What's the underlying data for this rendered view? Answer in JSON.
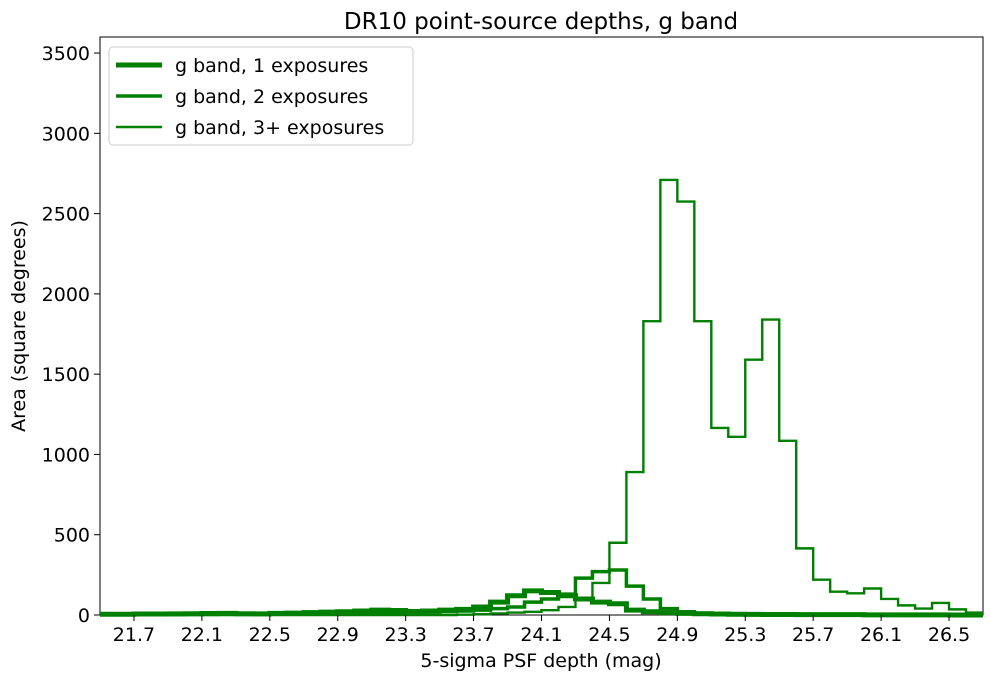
{
  "chart_data": {
    "type": "line",
    "style": "step histogram",
    "title": "DR10 point-source depths, g band",
    "xlabel": "5-sigma PSF depth (mag)",
    "ylabel": "Area (square degrees)",
    "xlim": [
      21.5,
      26.7
    ],
    "ylim": [
      0,
      3600
    ],
    "bin_width": 0.1,
    "x_ticks": [
      "21.7",
      "22.1",
      "22.5",
      "22.9",
      "23.3",
      "23.7",
      "24.1",
      "24.5",
      "24.9",
      "25.3",
      "25.7",
      "26.1",
      "26.5"
    ],
    "y_ticks": [
      "0",
      "500",
      "1000",
      "1500",
      "2000",
      "2500",
      "3000",
      "3500"
    ],
    "grid": false,
    "legend_position": "top-left",
    "color": "#008000",
    "series": [
      {
        "name": "g band, 1 exposures",
        "line_weight": "thick",
        "bin_starts": [
          21.5,
          21.6,
          21.7,
          21.8,
          21.9,
          22.0,
          22.1,
          22.2,
          22.3,
          22.4,
          22.5,
          22.6,
          22.7,
          22.8,
          22.9,
          23.0,
          23.1,
          23.2,
          23.3,
          23.4,
          23.5,
          23.6,
          23.7,
          23.8,
          23.9,
          24.0,
          24.1,
          24.2,
          24.3,
          24.4,
          24.5,
          24.6,
          24.7,
          24.8,
          24.9,
          25.0,
          25.1,
          25.2,
          25.3,
          25.4,
          25.5,
          25.6,
          25.7,
          25.8,
          25.9,
          26.0,
          26.1,
          26.2,
          26.3,
          26.4,
          26.5,
          26.6
        ],
        "values": [
          5,
          5,
          6,
          6,
          7,
          8,
          9,
          10,
          8,
          7,
          10,
          12,
          15,
          18,
          20,
          25,
          30,
          28,
          22,
          25,
          30,
          35,
          50,
          80,
          120,
          150,
          140,
          120,
          100,
          80,
          70,
          30,
          20,
          15,
          10,
          8,
          6,
          5,
          4,
          3,
          3,
          2,
          2,
          2,
          2,
          1,
          1,
          1,
          1,
          1,
          0,
          0
        ]
      },
      {
        "name": "g band, 2 exposures",
        "line_weight": "medium",
        "bin_starts": [
          21.5,
          21.6,
          21.7,
          21.8,
          21.9,
          22.0,
          22.1,
          22.2,
          22.3,
          22.4,
          22.5,
          22.6,
          22.7,
          22.8,
          22.9,
          23.0,
          23.1,
          23.2,
          23.3,
          23.4,
          23.5,
          23.6,
          23.7,
          23.8,
          23.9,
          24.0,
          24.1,
          24.2,
          24.3,
          24.4,
          24.5,
          24.6,
          24.7,
          24.8,
          24.9,
          25.0,
          25.1,
          25.2,
          25.3,
          25.4,
          25.5,
          25.6,
          25.7,
          25.8,
          25.9,
          26.0,
          26.1,
          26.2,
          26.3,
          26.4,
          26.5,
          26.6
        ],
        "values": [
          2,
          2,
          3,
          3,
          3,
          4,
          4,
          5,
          5,
          5,
          6,
          6,
          7,
          8,
          9,
          10,
          12,
          14,
          16,
          18,
          22,
          25,
          30,
          40,
          50,
          80,
          100,
          130,
          230,
          270,
          280,
          180,
          100,
          40,
          20,
          12,
          8,
          6,
          5,
          4,
          3,
          3,
          2,
          2,
          2,
          1,
          1,
          1,
          1,
          1,
          0,
          0
        ]
      },
      {
        "name": "g band, 3+ exposures",
        "line_weight": "thin",
        "bin_starts": [
          21.5,
          21.6,
          21.7,
          21.8,
          21.9,
          22.0,
          22.1,
          22.2,
          22.3,
          22.4,
          22.5,
          22.6,
          22.7,
          22.8,
          22.9,
          23.0,
          23.1,
          23.2,
          23.3,
          23.4,
          23.5,
          23.6,
          23.7,
          23.8,
          23.9,
          24.0,
          24.1,
          24.2,
          24.3,
          24.4,
          24.5,
          24.6,
          24.7,
          24.8,
          24.9,
          25.0,
          25.1,
          25.2,
          25.3,
          25.4,
          25.5,
          25.6,
          25.7,
          25.8,
          25.9,
          26.0,
          26.1,
          26.2,
          26.3,
          26.4,
          26.5,
          26.6
        ],
        "values": [
          0,
          0,
          0,
          0,
          0,
          0,
          0,
          0,
          0,
          0,
          0,
          0,
          0,
          0,
          0,
          0,
          0,
          0,
          0,
          0,
          0,
          2,
          5,
          10,
          15,
          20,
          30,
          50,
          100,
          200,
          450,
          890,
          1830,
          2710,
          2575,
          1830,
          1165,
          1110,
          1590,
          1840,
          1085,
          415,
          220,
          145,
          135,
          165,
          100,
          60,
          40,
          75,
          35,
          15
        ]
      }
    ]
  }
}
